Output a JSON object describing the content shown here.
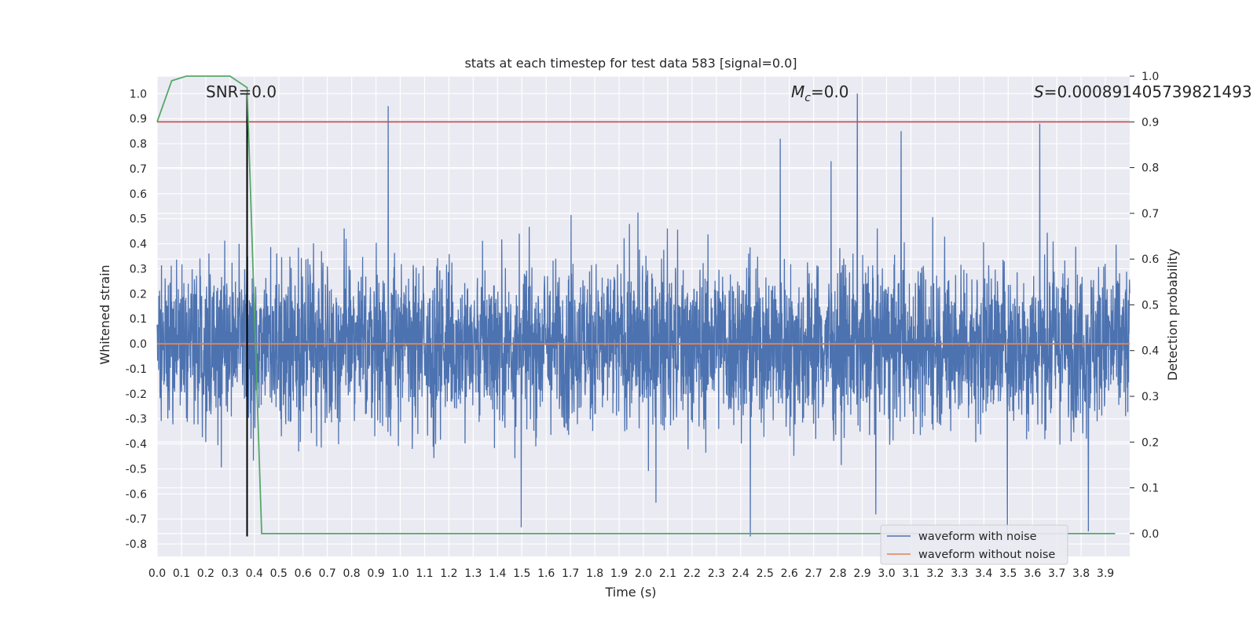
{
  "chart_data": {
    "type": "line",
    "title": "stats at each timestep for test data 583 [signal=0.0]",
    "xlabel": "Time (s)",
    "ylabel": "Whitened strain",
    "ylabel_right": "Detection probability",
    "xlim": [
      0.0,
      4.0
    ],
    "ylim": [
      -0.85,
      1.07
    ],
    "ylim_right": [
      -0.05,
      1.0
    ],
    "x_ticks": [
      "0.0",
      "0.1",
      "0.2",
      "0.3",
      "0.4",
      "0.5",
      "0.6",
      "0.7",
      "0.8",
      "0.9",
      "1.0",
      "1.1",
      "1.2",
      "1.3",
      "1.4",
      "1.5",
      "1.6",
      "1.7",
      "1.8",
      "1.9",
      "2.0",
      "2.1",
      "2.2",
      "2.3",
      "2.4",
      "2.5",
      "2.6",
      "2.7",
      "2.8",
      "2.9",
      "3.0",
      "3.1",
      "3.2",
      "3.3",
      "3.4",
      "3.5",
      "3.6",
      "3.7",
      "3.8",
      "3.9"
    ],
    "y_ticks": [
      "1.0",
      "0.9",
      "0.8",
      "0.7",
      "0.6",
      "0.5",
      "0.4",
      "0.3",
      "0.2",
      "0.1",
      "0.0",
      "-0.1",
      "-0.2",
      "-0.3",
      "-0.4",
      "-0.5",
      "-0.6",
      "-0.7",
      "-0.8"
    ],
    "y_ticks_right": [
      "1.0",
      "0.9",
      "0.8",
      "0.7",
      "0.6",
      "0.5",
      "0.4",
      "0.3",
      "0.2",
      "0.1",
      "0.0"
    ],
    "annotations": {
      "snr": "SNR=0.0",
      "mc_symbol": "M",
      "mc_sub": "c",
      "mc_value": "=0.0",
      "s_symbol": "S",
      "s_value": "=0.000891405739821493"
    },
    "legend": [
      "waveform with noise",
      "waveform without noise"
    ],
    "colors": {
      "noise": "#4c72b0",
      "clean": "#dd8452",
      "probability": "#55a868",
      "threshold": "#c44e52",
      "marker": "#000000",
      "grid": "#ffffff",
      "background": "#eaeaf2"
    },
    "series": [
      {
        "name": "waveform with noise",
        "axis": "left",
        "description_points": "dense noise spanning roughly -0.8 to 1.0",
        "peaks": [
          {
            "x": 0.95,
            "y": 0.95
          },
          {
            "x": 2.88,
            "y": 1.0
          },
          {
            "x": 3.06,
            "y": 0.85
          },
          {
            "x": 3.63,
            "y": 0.88
          },
          {
            "x": 2.44,
            "y": -0.77
          },
          {
            "x": 3.83,
            "y": -0.75
          }
        ],
        "envelope": [
          0.45,
          -0.45
        ]
      },
      {
        "name": "waveform without noise",
        "axis": "left",
        "x": [
          0.0,
          4.0
        ],
        "y": [
          0.0,
          0.0
        ]
      },
      {
        "name": "detection probability",
        "axis": "right",
        "x": [
          0.0,
          0.06,
          0.12,
          0.18,
          0.24,
          0.3,
          0.37,
          0.43,
          3.94
        ],
        "y": [
          0.9,
          0.99,
          1.0,
          1.0,
          1.0,
          1.0,
          0.975,
          0.0,
          0.0
        ]
      },
      {
        "name": "threshold",
        "axis": "right",
        "x": [
          0.0,
          4.0
        ],
        "y": [
          0.9,
          0.9
        ]
      }
    ],
    "marker_line": {
      "x": 0.37,
      "y_from": -0.77,
      "y_to": 1.0
    }
  }
}
